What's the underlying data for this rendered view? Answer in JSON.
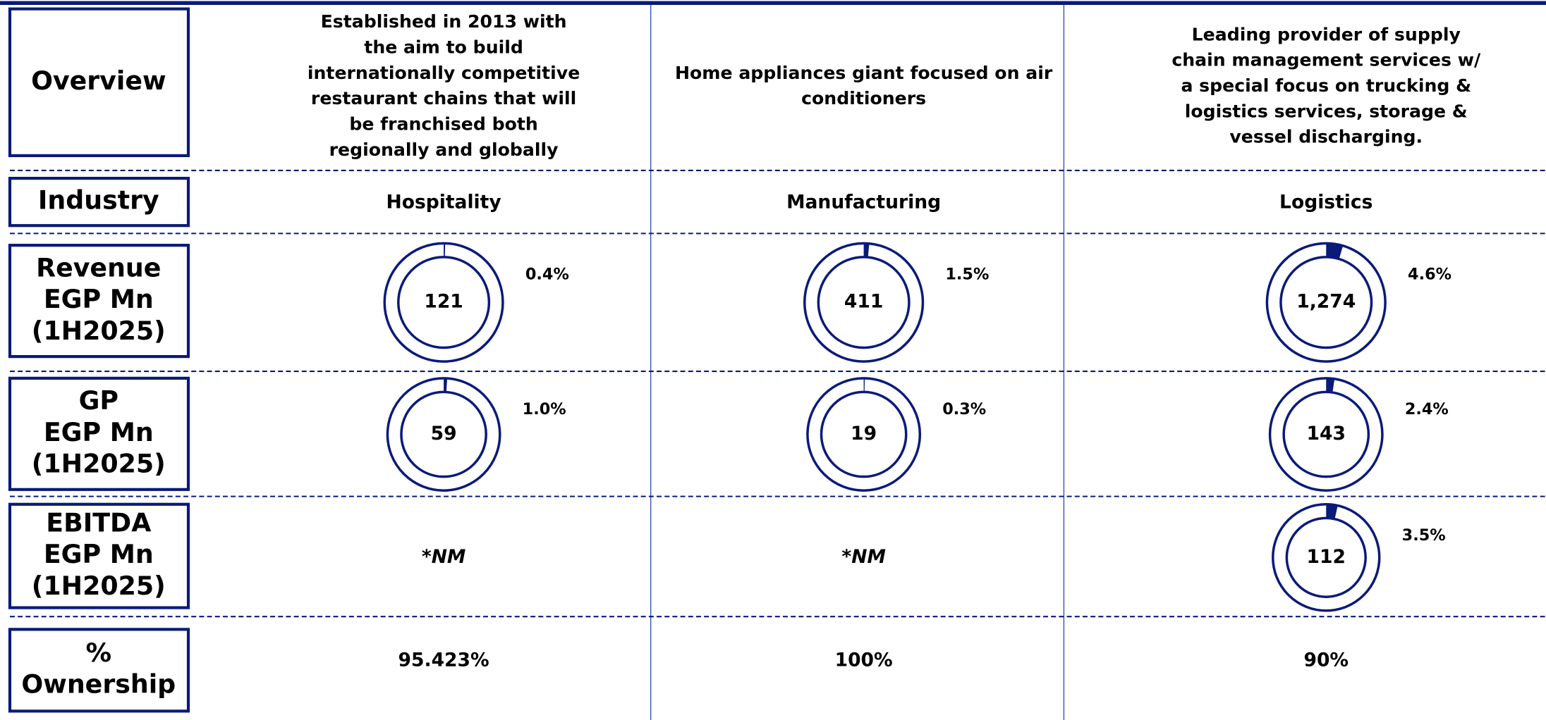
{
  "rows": [
    {
      "label": [
        "Overview"
      ],
      "cells": [
        {
          "lines": [
            "Established in 2013 with",
            "the aim to build",
            "internationally competitive",
            "restaurant chains that will",
            "be franchised both",
            "regionally and globally"
          ]
        },
        {
          "lines": [
            "Home appliances giant  focused on air",
            "conditioners"
          ]
        },
        {
          "lines": [
            "Leading provider of supply",
            "chain management  services w/",
            "a special focus  on trucking &",
            "logistics  services, storage &",
            "vessel  discharging."
          ]
        }
      ]
    },
    {
      "label": [
        "Industry"
      ],
      "cells": [
        {
          "lines": [
            "Hospitality"
          ]
        },
        {
          "lines": [
            "Manufacturing"
          ]
        },
        {
          "lines": [
            "Logistics"
          ]
        }
      ]
    },
    {
      "label": [
        "Revenue",
        "EGP Mn",
        "(1H2025)"
      ],
      "cells": [
        {
          "value": "121",
          "share": 0.4,
          "share_label": "0.4%"
        },
        {
          "value": "411",
          "share": 1.5,
          "share_label": "1.5%"
        },
        {
          "value": "1,274",
          "share": 4.6,
          "share_label": "4.6%"
        }
      ]
    },
    {
      "label": [
        "GP",
        "EGP Mn",
        "(1H2025)"
      ],
      "cells": [
        {
          "value": "59",
          "share": 1.0,
          "share_label": "1.0%"
        },
        {
          "value": "19",
          "share": 0.3,
          "share_label": "0.3%"
        },
        {
          "value": "143",
          "share": 2.4,
          "share_label": "2.4%"
        }
      ]
    },
    {
      "label": [
        "EBITDA",
        "EGP Mn",
        "(1H2025)"
      ],
      "cells": [
        {
          "note": "*NM"
        },
        {
          "note": "*NM"
        },
        {
          "value": "112",
          "share": 3.5,
          "share_label": "3.5%"
        }
      ]
    },
    {
      "label": [
        "%",
        "Ownership"
      ],
      "cells": [
        {
          "lines": [
            "95.423%"
          ]
        },
        {
          "lines": [
            "100%"
          ]
        },
        {
          "lines": [
            "90%"
          ]
        }
      ]
    }
  ]
}
